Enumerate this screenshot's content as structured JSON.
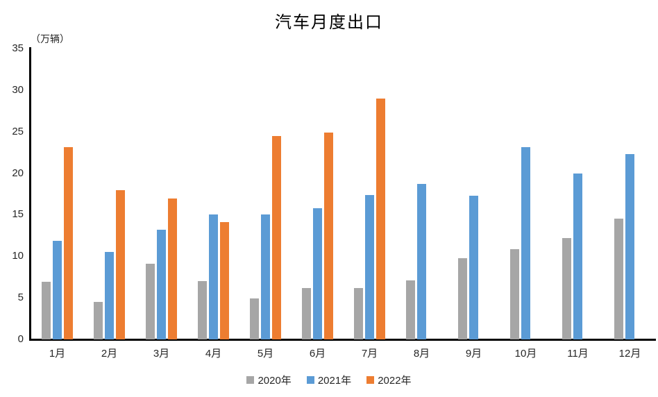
{
  "chart": {
    "title": "汽车月度出口",
    "unit_label": "（万辆）"
  },
  "chart_data": {
    "type": "bar",
    "title": "汽车月度出口",
    "ylabel": "（万辆）",
    "xlabel": "",
    "categories": [
      "1月",
      "2月",
      "3月",
      "4月",
      "5月",
      "6月",
      "7月",
      "8月",
      "9月",
      "10月",
      "11月",
      "12月"
    ],
    "series": [
      {
        "name": "2020年",
        "color": "#A6A6A6",
        "values": [
          6.9,
          4.5,
          9.1,
          7.0,
          4.9,
          6.2,
          6.2,
          7.1,
          9.8,
          10.9,
          12.2,
          14.5
        ]
      },
      {
        "name": "2021年",
        "color": "#5B9BD5",
        "values": [
          11.9,
          10.5,
          13.2,
          15.0,
          15.0,
          15.8,
          17.4,
          18.7,
          17.3,
          23.1,
          20.0,
          22.3
        ]
      },
      {
        "name": "2022年",
        "color": "#ED7D31",
        "values": [
          23.1,
          18.0,
          17.0,
          14.1,
          24.5,
          24.9,
          29.0,
          null,
          null,
          null,
          null,
          null
        ]
      }
    ],
    "ylim": [
      0,
      35
    ],
    "yticks": [
      0,
      5,
      10,
      15,
      20,
      25,
      30,
      35
    ],
    "grid": false,
    "legend_position": "bottom",
    "axis_color": "#000000",
    "text_color": "#262626"
  }
}
